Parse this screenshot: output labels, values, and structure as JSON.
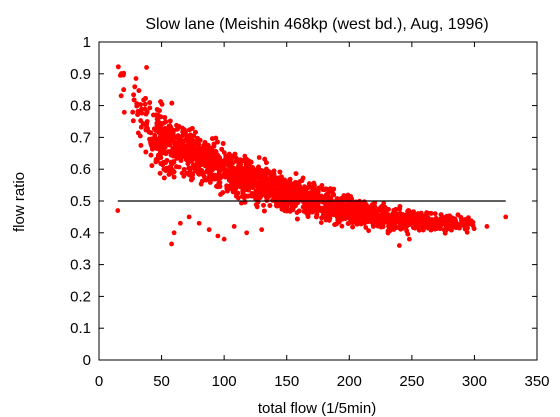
{
  "chart_data": {
    "type": "scatter",
    "title": "Slow lane (Meishin 468kp (west bd.), Aug, 1996)",
    "xlabel": "total flow (1/5min)",
    "ylabel": "flow ratio",
    "xlim": [
      0,
      350
    ],
    "ylim": [
      0,
      1
    ],
    "xticks": [
      "0",
      "50",
      "100",
      "150",
      "200",
      "250",
      "300",
      "350"
    ],
    "yticks": [
      "0",
      "0.1",
      "0.2",
      "0.3",
      "0.4",
      "0.5",
      "0.6",
      "0.7",
      "0.8",
      "0.9",
      "1"
    ],
    "grid": false,
    "legend": "none",
    "colors": {
      "points": "#ff0000",
      "reference_line": "#000000",
      "frame": "#000000"
    },
    "reference_line": {
      "y": 0.5,
      "x_start": 15,
      "x_end": 325
    },
    "point_cloud_trend": [
      {
        "x": 15,
        "y_center": 0.88,
        "y_spread": 0.04
      },
      {
        "x": 30,
        "y_center": 0.78,
        "y_spread": 0.08
      },
      {
        "x": 40,
        "y_center": 0.73,
        "y_spread": 0.09
      },
      {
        "x": 50,
        "y_center": 0.69,
        "y_spread": 0.09
      },
      {
        "x": 75,
        "y_center": 0.65,
        "y_spread": 0.07
      },
      {
        "x": 100,
        "y_center": 0.6,
        "y_spread": 0.06
      },
      {
        "x": 125,
        "y_center": 0.56,
        "y_spread": 0.055
      },
      {
        "x": 150,
        "y_center": 0.52,
        "y_spread": 0.05
      },
      {
        "x": 175,
        "y_center": 0.5,
        "y_spread": 0.045
      },
      {
        "x": 200,
        "y_center": 0.47,
        "y_spread": 0.04
      },
      {
        "x": 225,
        "y_center": 0.45,
        "y_spread": 0.035
      },
      {
        "x": 250,
        "y_center": 0.44,
        "y_spread": 0.03
      },
      {
        "x": 275,
        "y_center": 0.43,
        "y_spread": 0.025
      },
      {
        "x": 300,
        "y_center": 0.43,
        "y_spread": 0.02
      }
    ],
    "outlier_points": [
      {
        "x": 15,
        "y": 0.47
      },
      {
        "x": 17,
        "y": 0.895
      },
      {
        "x": 38,
        "y": 0.92
      },
      {
        "x": 58,
        "y": 0.365
      },
      {
        "x": 60,
        "y": 0.4
      },
      {
        "x": 65,
        "y": 0.43
      },
      {
        "x": 72,
        "y": 0.45
      },
      {
        "x": 80,
        "y": 0.43
      },
      {
        "x": 88,
        "y": 0.41
      },
      {
        "x": 95,
        "y": 0.39
      },
      {
        "x": 100,
        "y": 0.38
      },
      {
        "x": 108,
        "y": 0.42
      },
      {
        "x": 118,
        "y": 0.4
      },
      {
        "x": 130,
        "y": 0.41
      },
      {
        "x": 240,
        "y": 0.36
      },
      {
        "x": 248,
        "y": 0.38
      },
      {
        "x": 310,
        "y": 0.42
      },
      {
        "x": 325,
        "y": 0.45
      }
    ]
  }
}
